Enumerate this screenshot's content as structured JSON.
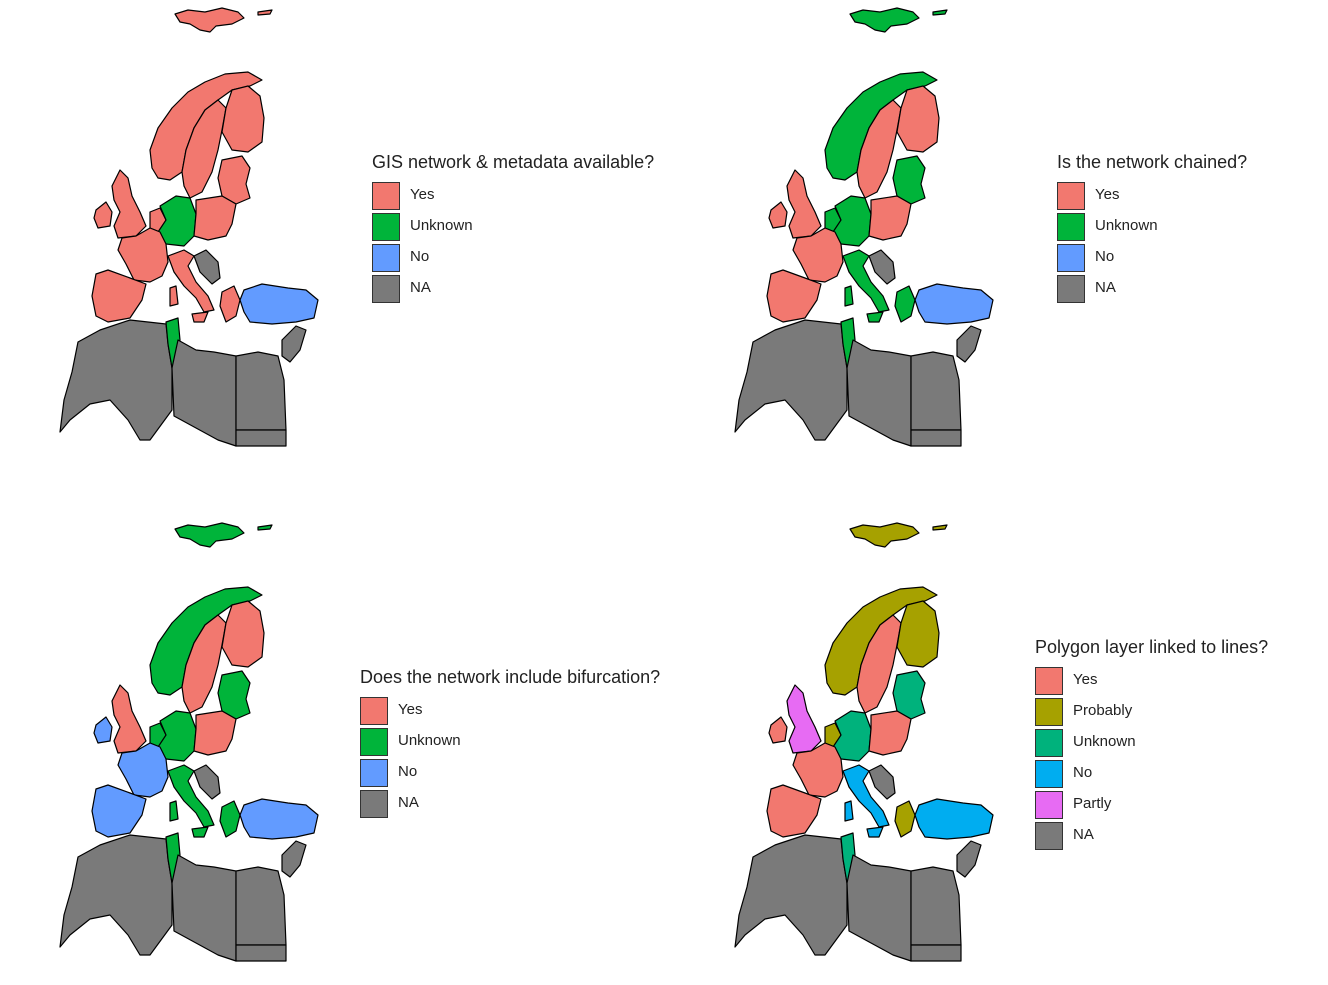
{
  "colors": {
    "yes": "#F2786F",
    "probably": "#A6A100",
    "unknown_a": "#00B43A",
    "unknown_b": "#00B27C",
    "no_a": "#629BFF",
    "no_b": "#00ADF0",
    "partly": "#E76BF3",
    "na": "#7A7A7A"
  },
  "panels": [
    {
      "legend_title": "GIS network & metadata available?",
      "legend": [
        {
          "label": "Yes",
          "color": "#F2786F"
        },
        {
          "label": "Unknown",
          "color": "#00B43A"
        },
        {
          "label": "No",
          "color": "#629BFF"
        },
        {
          "label": "NA",
          "color": "#7A7A7A"
        }
      ],
      "regions": {
        "svalbard": "#F2786F",
        "norway": "#F2786F",
        "sweden": "#F2786F",
        "finland": "#F2786F",
        "baltics": "#F2786F",
        "ireland": "#F2786F",
        "uk": "#F2786F",
        "benelux": "#F2786F",
        "germany": "#00B43A",
        "poland": "#F2786F",
        "france": "#F2786F",
        "iberia": "#F2786F",
        "italy": "#F2786F",
        "balkans": "#7A7A7A",
        "greece": "#F2786F",
        "turkey": "#629BFF",
        "tunisia": "#00B43A",
        "maghreb": "#7A7A7A",
        "libya": "#7A7A7A",
        "egypt": "#7A7A7A",
        "levant": "#7A7A7A"
      }
    },
    {
      "legend_title": "Is the network chained?",
      "legend": [
        {
          "label": "Yes",
          "color": "#F2786F"
        },
        {
          "label": "Unknown",
          "color": "#00B43A"
        },
        {
          "label": "No",
          "color": "#629BFF"
        },
        {
          "label": "NA",
          "color": "#7A7A7A"
        }
      ],
      "regions": {
        "svalbard": "#00B43A",
        "norway": "#00B43A",
        "sweden": "#F2786F",
        "finland": "#F2786F",
        "baltics": "#00B43A",
        "ireland": "#F2786F",
        "uk": "#F2786F",
        "benelux": "#00B43A",
        "germany": "#00B43A",
        "poland": "#F2786F",
        "france": "#F2786F",
        "iberia": "#F2786F",
        "italy": "#00B43A",
        "balkans": "#7A7A7A",
        "greece": "#00B43A",
        "turkey": "#629BFF",
        "tunisia": "#00B43A",
        "maghreb": "#7A7A7A",
        "libya": "#7A7A7A",
        "egypt": "#7A7A7A",
        "levant": "#7A7A7A"
      }
    },
    {
      "legend_title": "Does the network include bifurcation?",
      "legend": [
        {
          "label": "Yes",
          "color": "#F2786F"
        },
        {
          "label": "Unknown",
          "color": "#00B43A"
        },
        {
          "label": "No",
          "color": "#629BFF"
        },
        {
          "label": "NA",
          "color": "#7A7A7A"
        }
      ],
      "regions": {
        "svalbard": "#00B43A",
        "norway": "#00B43A",
        "sweden": "#F2786F",
        "finland": "#F2786F",
        "baltics": "#00B43A",
        "ireland": "#629BFF",
        "uk": "#F2786F",
        "benelux": "#00B43A",
        "germany": "#00B43A",
        "poland": "#F2786F",
        "france": "#629BFF",
        "iberia": "#629BFF",
        "italy": "#00B43A",
        "balkans": "#7A7A7A",
        "greece": "#00B43A",
        "turkey": "#629BFF",
        "tunisia": "#00B43A",
        "maghreb": "#7A7A7A",
        "libya": "#7A7A7A",
        "egypt": "#7A7A7A",
        "levant": "#7A7A7A"
      }
    },
    {
      "legend_title": "Polygon layer linked to lines?",
      "legend": [
        {
          "label": "Yes",
          "color": "#F2786F"
        },
        {
          "label": "Probably",
          "color": "#A6A100"
        },
        {
          "label": "Unknown",
          "color": "#00B27C"
        },
        {
          "label": "No",
          "color": "#00ADF0"
        },
        {
          "label": "Partly",
          "color": "#E76BF3"
        },
        {
          "label": "NA",
          "color": "#7A7A7A"
        }
      ],
      "regions": {
        "svalbard": "#A6A100",
        "norway": "#A6A100",
        "sweden": "#F2786F",
        "finland": "#A6A100",
        "baltics": "#00B27C",
        "ireland": "#F2786F",
        "uk": "#E76BF3",
        "benelux": "#A6A100",
        "germany": "#00B27C",
        "poland": "#F2786F",
        "france": "#F2786F",
        "iberia": "#F2786F",
        "italy": "#00ADF0",
        "balkans": "#7A7A7A",
        "greece": "#A6A100",
        "turkey": "#00ADF0",
        "tunisia": "#00B27C",
        "maghreb": "#7A7A7A",
        "libya": "#7A7A7A",
        "egypt": "#7A7A7A",
        "levant": "#7A7A7A"
      }
    }
  ]
}
